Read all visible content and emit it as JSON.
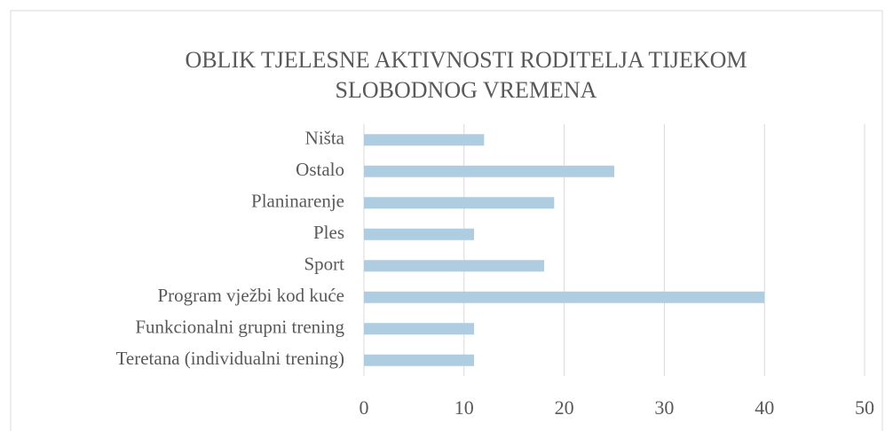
{
  "chart_data": {
    "type": "bar",
    "orientation": "horizontal",
    "title": [
      "OBLIK TJELESNE AKTIVNOSTI RODITELJA TIJEKOM",
      "SLOBODNOG VREMENA"
    ],
    "categories": [
      "Ništa",
      "Ostalo",
      "Planinarenje",
      "Ples",
      "Sport",
      "Program vježbi kod kuće",
      "Funkcionalni grupni trening",
      "Teretana (individualni trening)"
    ],
    "values": [
      12,
      25,
      19,
      11,
      18,
      40,
      11,
      11
    ],
    "color": "#aecde1",
    "xlim": [
      0,
      50
    ],
    "xticks": [
      0,
      10,
      20,
      30,
      40,
      50
    ],
    "grid": true
  }
}
